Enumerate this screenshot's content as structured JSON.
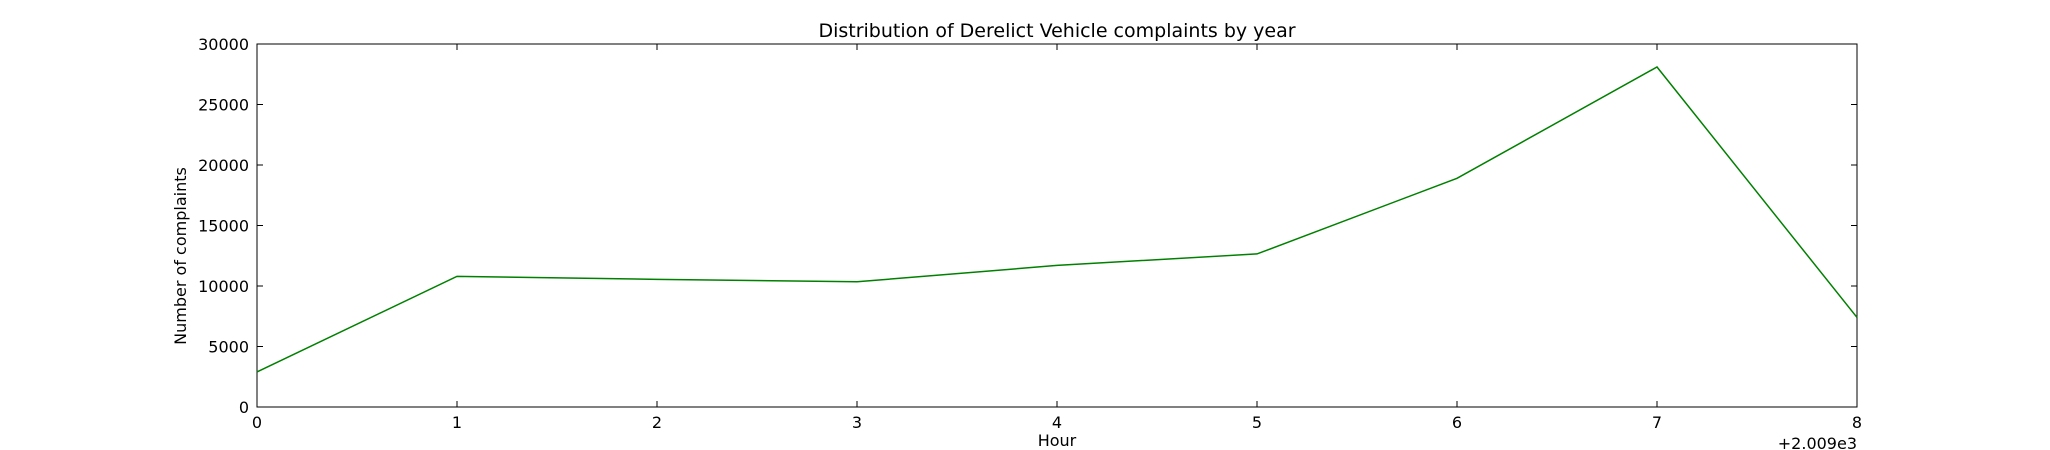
{
  "chart_data": {
    "type": "line",
    "title": "Distribution of  Derelict Vehicle complaints by year",
    "xlabel": "Hour",
    "ylabel": "Number of complaints",
    "x_offset_label": "+2.009e3",
    "x": [
      0,
      1,
      2,
      3,
      4,
      5,
      6,
      7,
      8
    ],
    "xlim": [
      0,
      8
    ],
    "ylim": [
      0,
      30000
    ],
    "x_ticks": [
      "0",
      "1",
      "2",
      "3",
      "4",
      "5",
      "6",
      "7",
      "8"
    ],
    "y_ticks": [
      "0",
      "5000",
      "10000",
      "15000",
      "20000",
      "25000",
      "30000"
    ],
    "grid": false,
    "series": [
      {
        "color": "#008000",
        "values": [
          2900,
          10800,
          10550,
          10350,
          11700,
          12650,
          18900,
          28100,
          7400
        ]
      }
    ]
  }
}
